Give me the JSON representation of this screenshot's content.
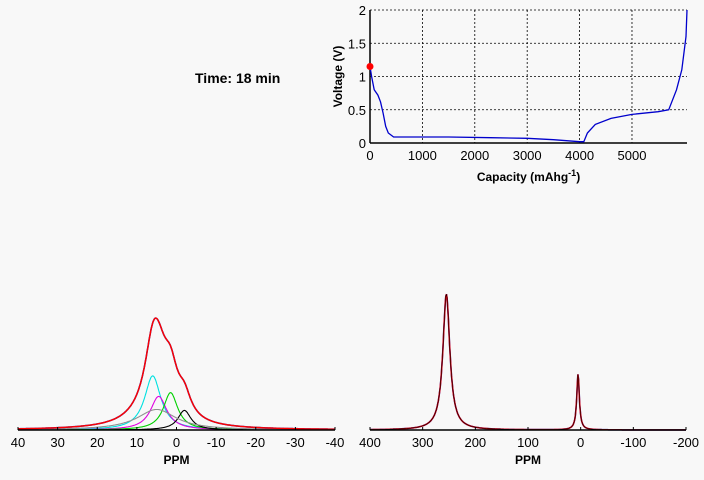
{
  "time_label": "Time: 18 min",
  "chart_data": [
    {
      "type": "line",
      "title": "",
      "xlabel": "Capacity (mAhg",
      "xlabel_superscript": "-1",
      "xlabel_suffix": ")",
      "ylabel": "Voltage (V)",
      "xlim": [
        0,
        6050
      ],
      "ylim": [
        0,
        2
      ],
      "xticks": [
        "0",
        "1000",
        "2000",
        "3000",
        "4000",
        "5000"
      ],
      "xtick_values": [
        0,
        1000,
        2000,
        3000,
        4000,
        5000
      ],
      "yticks": [
        "0",
        "0.5",
        "1",
        "1.5",
        "2"
      ],
      "ytick_values": [
        0,
        0.5,
        1,
        1.5,
        2
      ],
      "grid": true,
      "series": [
        {
          "name": "voltage",
          "color": "#0000cc",
          "x": [
            0,
            30,
            80,
            150,
            200,
            250,
            300,
            350,
            450,
            1500,
            2300,
            3000,
            3500,
            4000,
            4080,
            4150,
            4300,
            4600,
            5000,
            5500,
            5700,
            5850,
            5950,
            6030,
            6050
          ],
          "y": [
            1.15,
            1.0,
            0.8,
            0.72,
            0.62,
            0.45,
            0.25,
            0.15,
            0.09,
            0.09,
            0.08,
            0.07,
            0.05,
            0.02,
            0.02,
            0.15,
            0.28,
            0.37,
            0.43,
            0.47,
            0.5,
            0.8,
            1.1,
            1.6,
            2.0
          ]
        }
      ],
      "marker": {
        "x": 0,
        "y": 1.15,
        "color": "#ff0000"
      }
    },
    {
      "type": "line",
      "xlabel": "PPM",
      "xlim": [
        40,
        -40
      ],
      "ylim": [
        0,
        1.05
      ],
      "xticks": [
        "40",
        "30",
        "20",
        "10",
        "0",
        "-10",
        "-20",
        "-30",
        "-40"
      ],
      "xtick_values": [
        40,
        30,
        20,
        10,
        0,
        -10,
        -20,
        -30,
        -40
      ],
      "grid": false,
      "components": [
        {
          "name": "cyan",
          "color": "#00e0e0",
          "center": 6,
          "height": 0.58,
          "hwhm": 2.5
        },
        {
          "name": "magenta",
          "color": "#e000e0",
          "center": 4.5,
          "height": 0.36,
          "hwhm": 2.5
        },
        {
          "name": "green",
          "color": "#00d000",
          "center": 1.5,
          "height": 0.4,
          "hwhm": 2.2
        },
        {
          "name": "black",
          "color": "#000000",
          "center": -2,
          "height": 0.21,
          "hwhm": 2.0
        },
        {
          "name": "broad",
          "color": "#909090",
          "center": 5,
          "height": 0.22,
          "hwhm": 6
        }
      ],
      "total": {
        "name": "fit",
        "color": "#ff0000"
      },
      "experimental": {
        "name": "spectrum",
        "color": "#2020a0"
      }
    },
    {
      "type": "line",
      "xlabel": "PPM",
      "xlim": [
        400,
        -200
      ],
      "ylim": [
        0,
        1.03
      ],
      "xticks": [
        "400",
        "300",
        "200",
        "100",
        "0",
        "-100",
        "-200"
      ],
      "xtick_values": [
        400,
        300,
        200,
        100,
        0,
        -100,
        -200
      ],
      "grid": false,
      "components": [
        {
          "name": "peak-255",
          "color": "#000000",
          "center": 255,
          "height": 1.0,
          "hwhm": 8
        },
        {
          "name": "peak-5",
          "color": "#000000",
          "center": 5,
          "height": 0.41,
          "hwhm": 3
        }
      ],
      "total": {
        "name": "fit",
        "color": "#ff0000"
      },
      "experimental": {
        "name": "spectrum",
        "color": "#2020a0"
      }
    }
  ]
}
